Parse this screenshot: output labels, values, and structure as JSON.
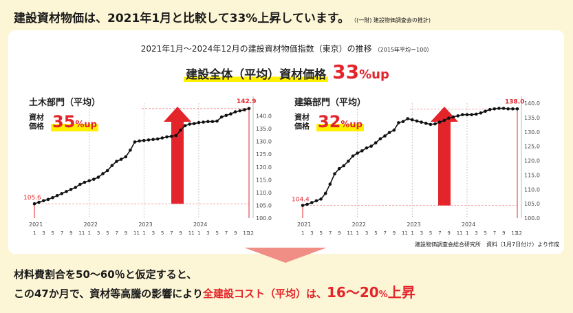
{
  "headline": {
    "text": "建設資材物価は、2021年1月と比較して33%上昇しています。",
    "note": "（(一財) 建設物価調査会の推計)"
  },
  "chart_title": {
    "text": "2021年1月～2024年12月の建設資材物価指数（東京）の推移",
    "note": "（2015年平均＝100）"
  },
  "overall": {
    "label": "建設全体（平均）資材価格",
    "pct": "33",
    "up": "%up"
  },
  "charts": [
    {
      "name": "土木部門（平均）",
      "badge_line1": "資材",
      "badge_line2": "価格",
      "badge_pct": "35",
      "badge_up": "%up"
    },
    {
      "name": "建築部門（平均）",
      "badge_line1": "資材",
      "badge_line2": "価格",
      "badge_pct": "32",
      "badge_up": "%up"
    }
  ],
  "chart_data": [
    {
      "type": "line",
      "title": "土木部門（平均）",
      "x": [
        "2021-01",
        "2021-02",
        "2021-03",
        "2021-04",
        "2021-05",
        "2021-06",
        "2021-07",
        "2021-08",
        "2021-09",
        "2021-10",
        "2021-11",
        "2021-12",
        "2022-01",
        "2022-02",
        "2022-03",
        "2022-04",
        "2022-05",
        "2022-06",
        "2022-07",
        "2022-08",
        "2022-09",
        "2022-10",
        "2022-11",
        "2022-12",
        "2023-01",
        "2023-02",
        "2023-03",
        "2023-04",
        "2023-05",
        "2023-06",
        "2023-07",
        "2023-08",
        "2023-09",
        "2023-10",
        "2023-11",
        "2023-12",
        "2024-01",
        "2024-02",
        "2024-03",
        "2024-04",
        "2024-05",
        "2024-06",
        "2024-07",
        "2024-08",
        "2024-09",
        "2024-10",
        "2024-11",
        "2024-12"
      ],
      "values": [
        105.6,
        106.2,
        106.8,
        107.3,
        108.0,
        108.8,
        109.6,
        110.4,
        111.2,
        112.0,
        113.2,
        114.0,
        114.6,
        115.2,
        116.0,
        117.4,
        118.6,
        120.6,
        122.2,
        123.0,
        124.0,
        126.6,
        129.8,
        130.2,
        130.4,
        130.6,
        130.8,
        131.0,
        131.4,
        131.8,
        132.0,
        132.3,
        134.4,
        136.2,
        136.8,
        137.0,
        137.4,
        137.6,
        137.8,
        137.8,
        138.0,
        139.6,
        140.2,
        140.8,
        141.6,
        142.0,
        142.4,
        142.9
      ],
      "start_label": "105.6",
      "end_label": "142.9",
      "ylim": [
        100,
        145
      ],
      "y_ticks": [
        "100.0",
        "105.0",
        "110.0",
        "115.0",
        "120.0",
        "125.0",
        "130.0",
        "135.0",
        "140.0"
      ]
    },
    {
      "type": "line",
      "title": "建築部門（平均）",
      "x": [
        "2021-01",
        "2021-02",
        "2021-03",
        "2021-04",
        "2021-05",
        "2021-06",
        "2021-07",
        "2021-08",
        "2021-09",
        "2021-10",
        "2021-11",
        "2021-12",
        "2022-01",
        "2022-02",
        "2022-03",
        "2022-04",
        "2022-05",
        "2022-06",
        "2022-07",
        "2022-08",
        "2022-09",
        "2022-10",
        "2022-11",
        "2022-12",
        "2023-01",
        "2023-02",
        "2023-03",
        "2023-04",
        "2023-05",
        "2023-06",
        "2023-07",
        "2023-08",
        "2023-09",
        "2023-10",
        "2023-11",
        "2023-12",
        "2024-01",
        "2024-02",
        "2024-03",
        "2024-04",
        "2024-05",
        "2024-06",
        "2024-07",
        "2024-08",
        "2024-09",
        "2024-10",
        "2024-11",
        "2024-12"
      ],
      "values": [
        104.4,
        104.8,
        105.4,
        106.0,
        106.6,
        108.6,
        111.8,
        115.4,
        117.2,
        118.2,
        119.8,
        121.6,
        122.6,
        123.4,
        124.4,
        125.0,
        126.2,
        127.6,
        128.6,
        129.8,
        130.6,
        133.2,
        133.6,
        134.6,
        134.2,
        133.8,
        133.4,
        133.0,
        132.6,
        132.8,
        133.4,
        134.0,
        134.8,
        135.2,
        135.6,
        136.0,
        136.0,
        136.0,
        136.2,
        136.6,
        137.2,
        137.8,
        138.0,
        138.2,
        138.2,
        138.0,
        138.0,
        138.0
      ],
      "start_label": "104.4",
      "end_label": "138.0",
      "ylim": [
        100,
        140
      ],
      "y_ticks": [
        "100.0",
        "105.0",
        "110.0",
        "115.0",
        "120.0",
        "125.0",
        "130.0",
        "135.0",
        "140.0"
      ]
    }
  ],
  "x_axis": {
    "year_labels": [
      "2021",
      "2022",
      "2023",
      "2024"
    ],
    "month_labels": [
      "1",
      "3",
      "5",
      "7",
      "9",
      "11",
      "1",
      "3",
      "5",
      "7",
      "9",
      "11",
      "1",
      "3",
      "5",
      "7",
      "9",
      "11",
      "1",
      "3",
      "5",
      "7",
      "9",
      "11",
      "12"
    ]
  },
  "source": "建設物価調査会総合研究所　資料（1月7日付け）より作成",
  "footer": {
    "line1": "材料費割合を50～60％と仮定すると、",
    "line2a": "この47か月で、資材等高騰の影響により",
    "line2b": "全建設コスト（平均）",
    "line2c": "は、",
    "line2d": "16～20",
    "line2e": "%",
    "line2f": "上昇"
  },
  "colors": {
    "accent": "#e3242b",
    "highlight": "#fff000",
    "line": "#111111",
    "background": "#fdf6d6",
    "arrow": "#e3242b"
  }
}
